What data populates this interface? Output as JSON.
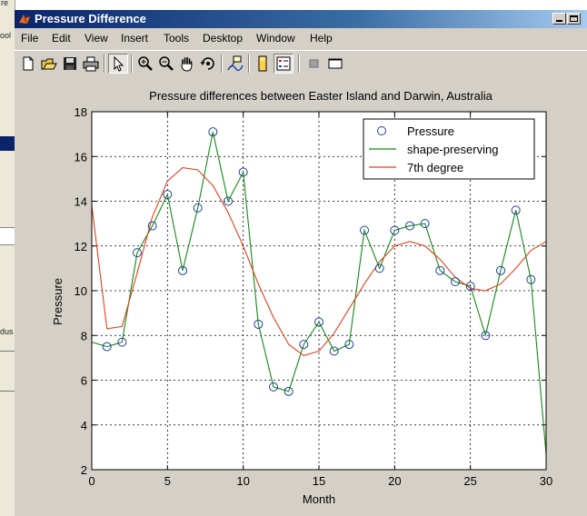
{
  "background_window": {
    "fragments": [
      "re",
      "ool",
      "dus"
    ]
  },
  "window": {
    "title": "Pressure Difference",
    "menu": [
      "File",
      "Edit",
      "View",
      "Insert",
      "Tools",
      "Desktop",
      "Window",
      "Help"
    ]
  },
  "toolbar": {
    "buttons": [
      "new-figure",
      "open-file",
      "save",
      "print",
      "edit-plot",
      "zoom-in",
      "zoom-out",
      "pan",
      "rotate-3d",
      "data-cursor",
      "colorbar",
      "legend",
      "hide-plot-tools",
      "show-plot-tools"
    ]
  },
  "colors": {
    "markers": "#1f3fa0",
    "shape_preserving": "#138a13",
    "seventh_degree": "#e0401a",
    "axes_bg": "#ffffff",
    "figure_bg": "#d4d0c8"
  },
  "chart_data": {
    "type": "line",
    "title": "Pressure differences between Easter Island and Darwin, Australia",
    "xlabel": "Month",
    "ylabel": "Pressure",
    "xlim": [
      0,
      30
    ],
    "ylim": [
      2,
      18
    ],
    "xticks": [
      "0",
      "5",
      "10",
      "15",
      "20",
      "25",
      "30"
    ],
    "yticks": [
      "2",
      "4",
      "6",
      "8",
      "10",
      "12",
      "14",
      "16",
      "18"
    ],
    "grid": true,
    "legend_position": "top-right",
    "legend": [
      "Pressure",
      "shape-preserving",
      "7th degree"
    ],
    "series": [
      {
        "name": "Pressure",
        "marker": "circle",
        "x": [
          1,
          2,
          3,
          4,
          5,
          6,
          7,
          8,
          9,
          10,
          11,
          12,
          13,
          14,
          15,
          16,
          17,
          18,
          19,
          20,
          21,
          22,
          23,
          24,
          25,
          26,
          27,
          28,
          29
        ],
        "y": [
          7.5,
          7.7,
          11.7,
          12.9,
          14.3,
          10.9,
          13.7,
          17.1,
          14.0,
          15.3,
          8.5,
          5.7,
          5.5,
          7.6,
          8.6,
          7.3,
          7.6,
          12.7,
          11.0,
          12.7,
          12.9,
          13.0,
          10.9,
          10.4,
          10.2,
          8.0,
          10.9,
          13.6,
          10.5
        ]
      },
      {
        "name": "shape-preserving",
        "x": [
          0,
          1,
          2,
          3,
          4,
          5,
          6,
          7,
          8,
          9,
          10,
          11,
          12,
          13,
          14,
          15,
          16,
          17,
          18,
          19,
          20,
          21,
          22,
          23,
          24,
          25,
          26,
          27,
          28,
          29,
          30
        ],
        "y": [
          7.7,
          7.5,
          7.7,
          11.7,
          12.9,
          14.3,
          10.9,
          13.7,
          17.1,
          14.0,
          15.3,
          8.5,
          5.7,
          5.5,
          7.6,
          8.6,
          7.3,
          7.6,
          12.7,
          11.0,
          12.7,
          12.9,
          13.0,
          10.9,
          10.4,
          10.2,
          8.0,
          10.9,
          13.6,
          10.5,
          2.7
        ]
      },
      {
        "name": "7th degree",
        "x": [
          0,
          1,
          2,
          3,
          4,
          5,
          6,
          7,
          8,
          9,
          10,
          11,
          12,
          13,
          14,
          15,
          16,
          17,
          18,
          19,
          20,
          21,
          22,
          23,
          24,
          25,
          26,
          27,
          28,
          29,
          30
        ],
        "y": [
          13.8,
          8.3,
          8.4,
          10.8,
          13.3,
          14.9,
          15.5,
          15.4,
          14.7,
          13.5,
          12.0,
          10.3,
          8.8,
          7.6,
          7.1,
          7.3,
          8.1,
          9.2,
          10.3,
          11.3,
          12.0,
          12.2,
          12.0,
          11.4,
          10.6,
          10.1,
          10.0,
          10.3,
          11.0,
          11.8,
          12.2
        ]
      }
    ]
  }
}
